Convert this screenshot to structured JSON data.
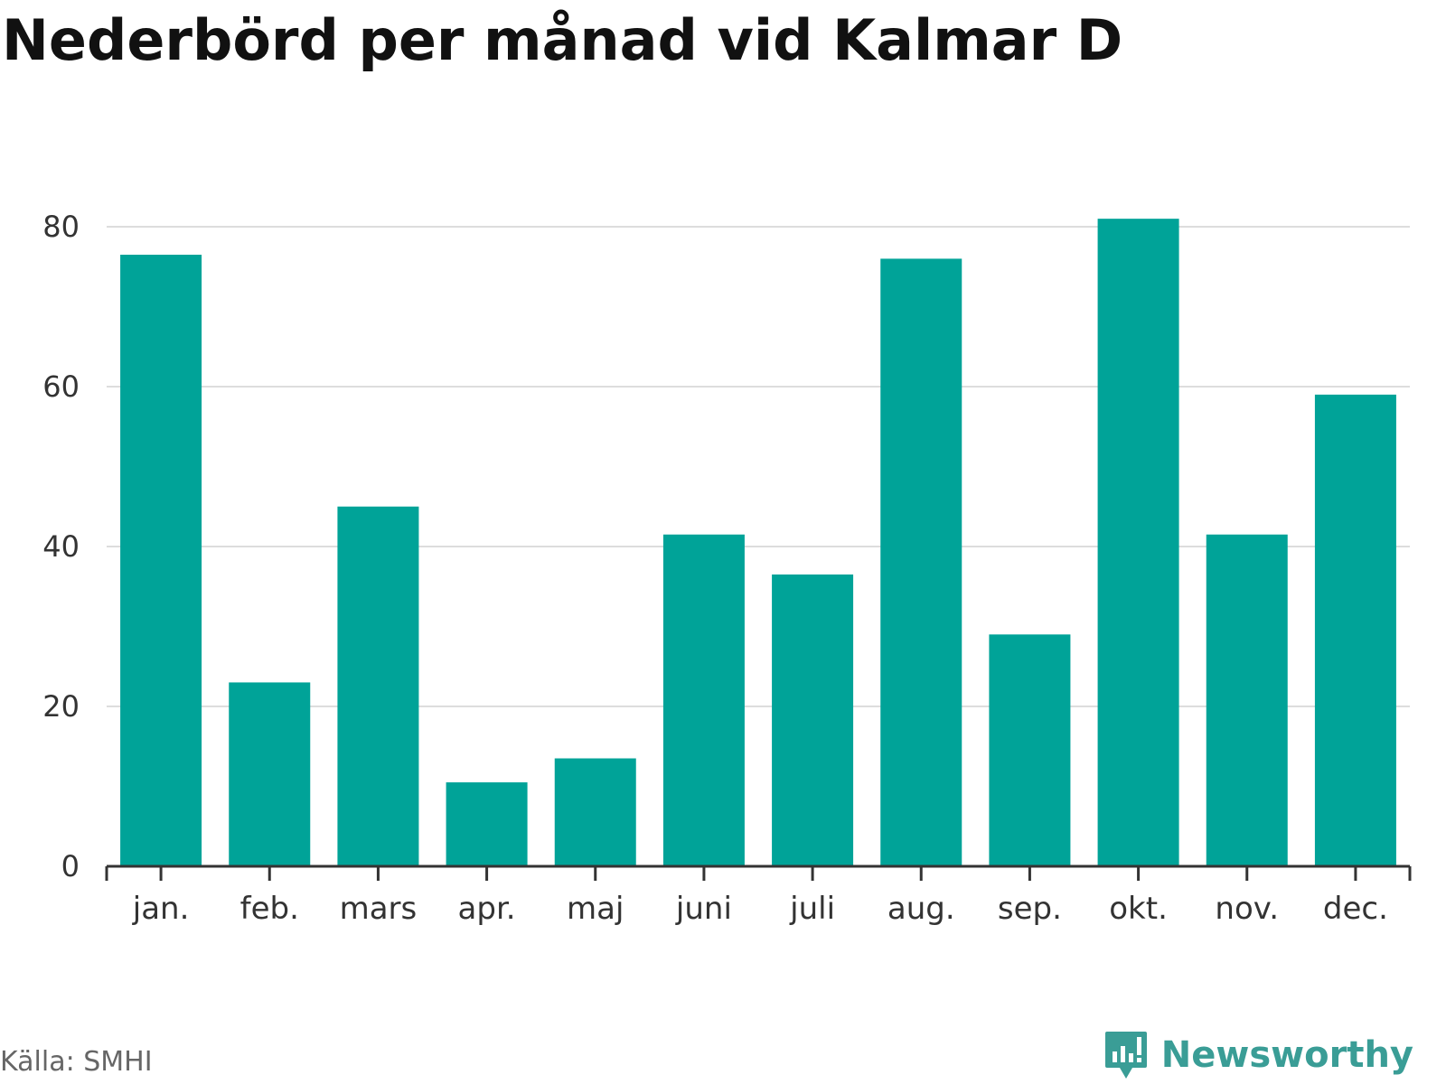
{
  "title": "Nederbörd per månad vid Kalmar D",
  "source": "Källa: SMHI",
  "brand": "Newsworthy",
  "colors": {
    "bar": "#00a398",
    "grid": "#dddddd",
    "axis": "#333333",
    "tick_text": "#333333",
    "brand": "#3a9d96"
  },
  "chart_data": {
    "type": "bar",
    "title": "Nederbörd per månad vid Kalmar D",
    "xlabel": "",
    "ylabel": "",
    "categories": [
      "jan.",
      "feb.",
      "mars",
      "apr.",
      "maj",
      "juni",
      "juli",
      "aug.",
      "sep.",
      "okt.",
      "nov.",
      "dec."
    ],
    "values": [
      76.5,
      23.0,
      45.0,
      10.5,
      13.5,
      41.5,
      36.5,
      76.0,
      29.0,
      81.0,
      41.5,
      59.0
    ],
    "ylim": [
      0,
      80
    ],
    "yticks": [
      0,
      20,
      40,
      60,
      80
    ],
    "grid": true,
    "legend": "none"
  }
}
